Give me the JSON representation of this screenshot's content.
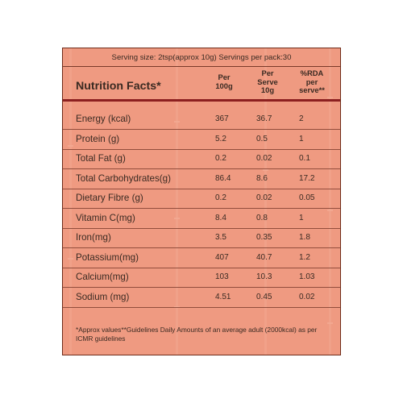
{
  "serving_line": "Serving size: 2tsp(approx 10g) Servings per pack:30",
  "header": {
    "title": "Nutrition Facts*",
    "col1": [
      "Per",
      "100g"
    ],
    "col2": [
      "Per",
      "Serve",
      "10g"
    ],
    "col3": [
      "%RDA",
      "per",
      "serve**"
    ]
  },
  "rows": [
    {
      "name": "Energy (kcal)",
      "per100": "367",
      "perServe": "36.7",
      "rda": "2"
    },
    {
      "name": "Protein (g)",
      "per100": "5.2",
      "perServe": "0.5",
      "rda": "1"
    },
    {
      "name": "Total Fat (g)",
      "per100": "0.2",
      "perServe": "0.02",
      "rda": "0.1"
    },
    {
      "name": "Total Carbohydrates(g)",
      "per100": "86.4",
      "perServe": "8.6",
      "rda": "17.2"
    },
    {
      "name": "Dietary Fibre (g)",
      "per100": "0.2",
      "perServe": "0.02",
      "rda": "0.05"
    },
    {
      "name": "Vitamin C(mg)",
      "per100": "8.4",
      "perServe": "0.8",
      "rda": "1"
    },
    {
      "name": "Iron(mg)",
      "per100": "3.5",
      "perServe": "0.35",
      "rda": "1.8"
    },
    {
      "name": "Potassium(mg)",
      "per100": "407",
      "perServe": "40.7",
      "rda": "1.2"
    },
    {
      "name": "Calcium(mg)",
      "per100": "103",
      "perServe": "10.3",
      "rda": "1.03"
    },
    {
      "name": "Sodium (mg)",
      "per100": "4.51",
      "perServe": "0.45",
      "rda": "0.02"
    }
  ],
  "footnote": "*Approx values**Guidelines Daily Amounts of an average adult (2000kcal) as per ICMR guidelines",
  "colors": {
    "panel": "#ef9a81",
    "border": "#6e2b1a",
    "header_rule": "#8c2020"
  }
}
